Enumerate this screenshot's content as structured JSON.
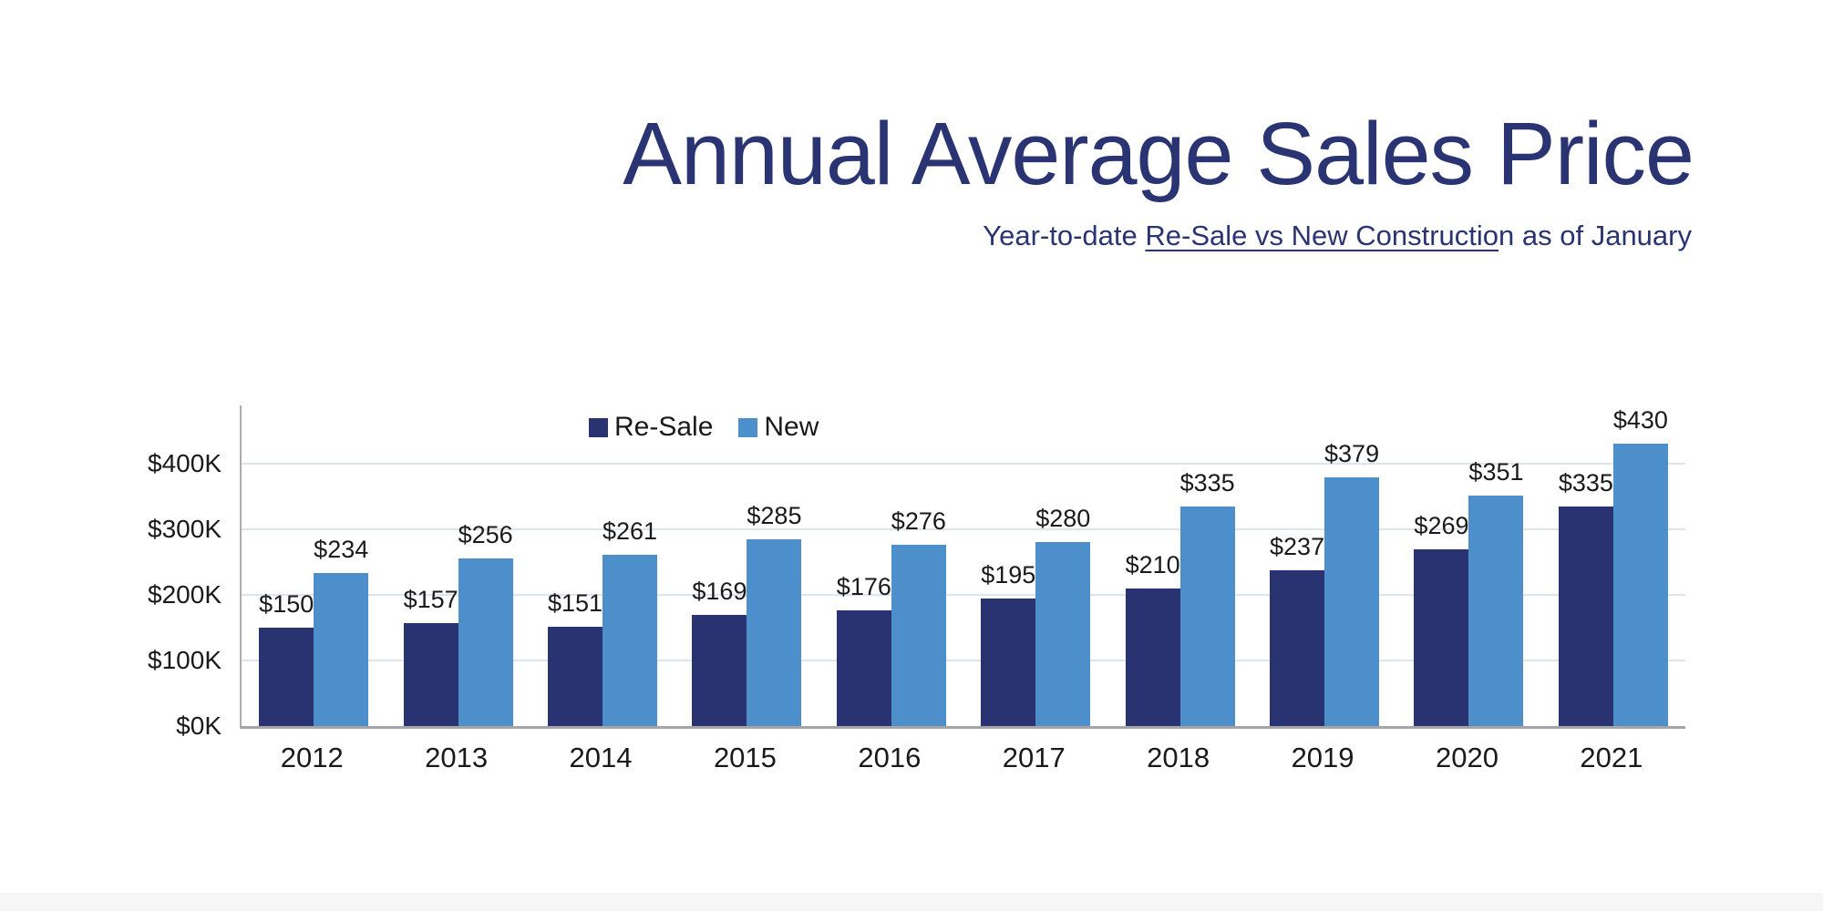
{
  "title": "Annual Average Sales Price",
  "subtitle": {
    "prefix": "Year-to-date ",
    "underlined": "Re-Sale vs New Constructio",
    "suffix": "n as of January"
  },
  "colors": {
    "title_text": "#2A3473",
    "resale_bar": "#293372",
    "new_bar": "#4C8FCB",
    "axis_line": "#ACACAF",
    "baseline": "#A5A5A8",
    "gridline": "#DDE3EF",
    "label_text": "#1A1A1A"
  },
  "chart_data": {
    "type": "bar",
    "title": "Annual Average Sales Price",
    "subtitle": "Year-to-date Re-Sale vs New Construction as of January",
    "categories": [
      "2012",
      "2013",
      "2014",
      "2015",
      "2016",
      "2017",
      "2018",
      "2019",
      "2020",
      "2021"
    ],
    "series": [
      {
        "name": "Re-Sale",
        "color": "#293372",
        "values": [
          150,
          157,
          151,
          169,
          176,
          195,
          210,
          237,
          269,
          335
        ]
      },
      {
        "name": "New",
        "color": "#4C8FCB",
        "values": [
          234,
          256,
          261,
          285,
          276,
          280,
          335,
          379,
          351,
          430
        ]
      }
    ],
    "value_label_prefix": "$",
    "yticks": [
      {
        "value": 0,
        "label": "$0K"
      },
      {
        "value": 100,
        "label": "$100K"
      },
      {
        "value": 200,
        "label": "$200K"
      },
      {
        "value": 300,
        "label": "$300K"
      },
      {
        "value": 400,
        "label": "$400K"
      }
    ],
    "ylim": [
      0,
      489
    ],
    "xlabel": "",
    "ylabel": "",
    "grid": true,
    "legend_position": "top-center"
  }
}
